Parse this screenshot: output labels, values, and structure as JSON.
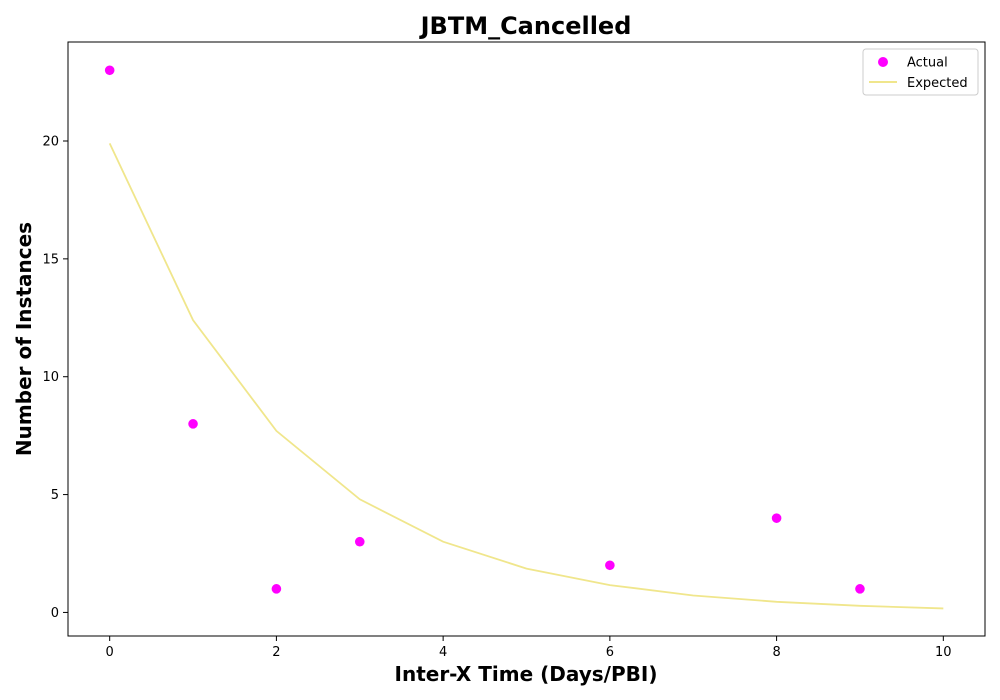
{
  "chart_data": {
    "type": "scatter",
    "title": "JBTM_Cancelled",
    "xlabel": "Inter-X Time (Days/PBI)",
    "ylabel": "Number of Instances",
    "xlim": [
      -0.5,
      10.5
    ],
    "ylim": [
      -1.0,
      24.2
    ],
    "x_ticks": [
      0,
      2,
      4,
      6,
      8,
      10
    ],
    "y_ticks": [
      0,
      5,
      10,
      15,
      20
    ],
    "grid": false,
    "legend_position": "top-right",
    "series": [
      {
        "name": "Actual",
        "kind": "scatter",
        "color": "#ff00ff",
        "x": [
          0,
          1,
          2,
          3,
          6,
          8,
          9
        ],
        "y": [
          23,
          8,
          1,
          3,
          2,
          4,
          1
        ]
      },
      {
        "name": "Expected",
        "kind": "line",
        "color": "#f0e68c",
        "x": [
          0,
          1,
          2,
          3,
          4,
          5,
          6,
          7,
          8,
          9,
          10
        ],
        "y": [
          19.9,
          12.4,
          7.7,
          4.8,
          3.0,
          1.86,
          1.16,
          0.72,
          0.45,
          0.28,
          0.17
        ]
      }
    ]
  }
}
